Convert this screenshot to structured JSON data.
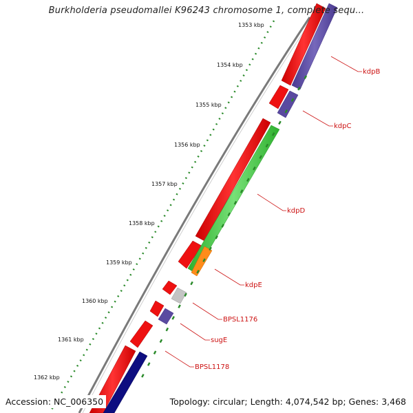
{
  "title": "Burkholderia pseudomallei K96243 chromosome 1, complete sequ...",
  "footer": {
    "accession": "Accession: NC_006350",
    "topology": "Topology: circular; Length: 4,074,542 bp; Genes: 3,468"
  },
  "colors": {
    "backbone": "#8a8a8a",
    "forward_cds": "#ee1111",
    "reverse_cds": "#5a4aa0",
    "reverse_dark": "#0d0d80",
    "kdpD": "#44cc44",
    "kdpE": "#ff8c1a",
    "neutral": "#bbbbbb",
    "ticks": "#2a8a2a",
    "label": "#cc1111"
  },
  "ruler": {
    "ticks": [
      "1353 kbp",
      "1354 kbp",
      "1355 kbp",
      "1356 kbp",
      "1357 kbp",
      "1358 kbp",
      "1359 kbp",
      "1360 kbp",
      "1361 kbp",
      "1362 kbp"
    ]
  },
  "genes": {
    "kdpB": "kdpB",
    "kdpC": "kdpC",
    "kdpD": "kdpD",
    "kdpE": "kdpE",
    "BPSL1176": "BPSL1176",
    "sugE": "sugE",
    "BPSL1178": "BPSL1178"
  }
}
